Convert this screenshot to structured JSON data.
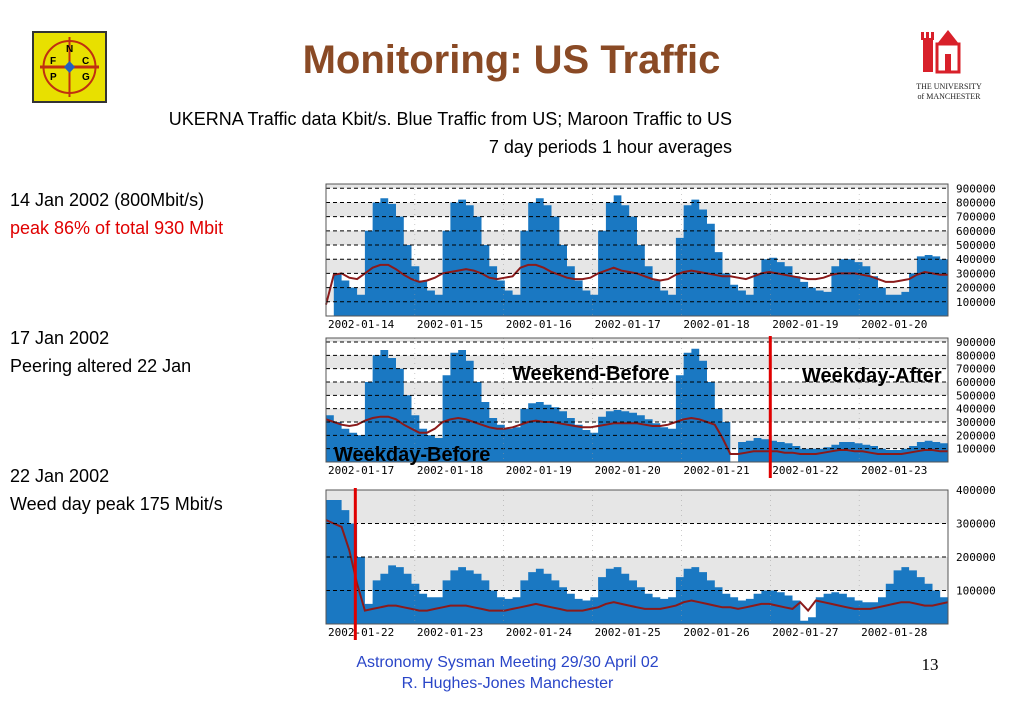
{
  "title": "Monitoring: US Traffic",
  "subtitle_line1": "UKERNA Traffic data Kbit/s. Blue Traffic from US;  Maroon Traffic to US",
  "subtitle_line2": "7 day periods 1 hour averages",
  "notes": [
    {
      "line1": "14 Jan 2002 (800Mbit/s)",
      "line2": "peak  86% of total 930 Mbit"
    },
    {
      "line1": "17 Jan 2002",
      "line2": "Peering altered 22 Jan"
    },
    {
      "line1": "22 Jan 2002",
      "line2": "Weed day peak 175 Mbit/s"
    }
  ],
  "footer": {
    "line1": "Astronomy Sysman Meeting  29/30 April 02",
    "line2": "R. Hughes-Jones  Manchester",
    "page_number": "13"
  },
  "logos": {
    "left_letters": [
      "N",
      "F",
      "C",
      "P",
      "G"
    ],
    "right_line1": "THE UNIVERSITY",
    "right_line2": "of MANCHESTER"
  },
  "colors": {
    "title": "#8a4a25",
    "inbound_blue": "#1a78c2",
    "outbound_maroon": "#8b1a1a",
    "marker_red": "#e00000",
    "note_red": "#e00000",
    "footer_blue": "#2a46c8"
  },
  "chart_data": [
    {
      "type": "area",
      "x_tick_labels": [
        "2002-01-14",
        "2002-01-15",
        "2002-01-16",
        "2002-01-17",
        "2002-01-18",
        "2002-01-19",
        "2002-01-20"
      ],
      "y_tick_labels": [
        "900000",
        "800000",
        "700000",
        "600000",
        "500000",
        "400000",
        "300000",
        "200000",
        "100000"
      ],
      "ylim": [
        0,
        930000
      ],
      "grid": true,
      "days": 7,
      "series": [
        {
          "color": "#1a78c2",
          "values": [
            0,
            300000,
            250000,
            200000,
            150000,
            600000,
            800000,
            830000,
            790000,
            700000,
            500000,
            350000,
            250000,
            180000,
            150000,
            600000,
            800000,
            820000,
            780000,
            700000,
            500000,
            350000,
            250000,
            180000,
            150000,
            600000,
            800000,
            830000,
            780000,
            700000,
            500000,
            350000,
            250000,
            180000,
            150000,
            600000,
            800000,
            850000,
            780000,
            700000,
            500000,
            350000,
            250000,
            180000,
            150000,
            550000,
            780000,
            820000,
            750000,
            650000,
            450000,
            300000,
            220000,
            180000,
            150000,
            300000,
            400000,
            410000,
            380000,
            350000,
            280000,
            240000,
            200000,
            180000,
            170000,
            350000,
            400000,
            400000,
            380000,
            350000,
            280000,
            200000,
            150000,
            150000,
            170000,
            300000,
            420000,
            430000,
            420000,
            400000,
            380000
          ]
        },
        {
          "color": "#8b1a1a",
          "values": [
            80000,
            290000,
            300000,
            270000,
            260000,
            300000,
            340000,
            360000,
            360000,
            330000,
            290000,
            260000,
            240000,
            250000,
            270000,
            300000,
            310000,
            320000,
            330000,
            320000,
            300000,
            270000,
            260000,
            270000,
            280000,
            340000,
            360000,
            360000,
            340000,
            310000,
            290000,
            270000,
            260000,
            260000,
            270000,
            300000,
            320000,
            340000,
            320000,
            310000,
            300000,
            280000,
            260000,
            250000,
            260000,
            290000,
            310000,
            320000,
            310000,
            300000,
            290000,
            280000,
            280000,
            270000,
            260000,
            280000,
            300000,
            310000,
            300000,
            290000,
            280000,
            270000,
            260000,
            260000,
            270000,
            290000,
            300000,
            300000,
            300000,
            290000,
            280000,
            260000,
            240000,
            240000,
            250000,
            260000,
            290000,
            310000,
            300000,
            290000,
            290000
          ]
        }
      ]
    },
    {
      "type": "area",
      "x_tick_labels": [
        "2002-01-17",
        "2002-01-18",
        "2002-01-19",
        "2002-01-20",
        "2002-01-21",
        "2002-01-22",
        "2002-01-23"
      ],
      "y_tick_labels": [
        "900000",
        "800000",
        "700000",
        "600000",
        "500000",
        "400000",
        "300000",
        "200000",
        "100000"
      ],
      "ylim": [
        0,
        930000
      ],
      "grid": true,
      "days": 7,
      "marker_day": 5.0,
      "series": [
        {
          "color": "#1a78c2",
          "values": [
            350000,
            300000,
            250000,
            220000,
            200000,
            600000,
            800000,
            840000,
            780000,
            700000,
            500000,
            350000,
            250000,
            200000,
            180000,
            650000,
            820000,
            840000,
            760000,
            600000,
            450000,
            330000,
            280000,
            250000,
            260000,
            400000,
            440000,
            450000,
            430000,
            410000,
            380000,
            330000,
            280000,
            240000,
            220000,
            340000,
            380000,
            390000,
            380000,
            370000,
            350000,
            320000,
            290000,
            260000,
            250000,
            650000,
            820000,
            850000,
            760000,
            600000,
            400000,
            300000,
            0,
            150000,
            160000,
            180000,
            170000,
            160000,
            150000,
            140000,
            120000,
            100000,
            100000,
            100000,
            110000,
            130000,
            150000,
            150000,
            140000,
            130000,
            120000,
            100000,
            90000,
            90000,
            100000,
            120000,
            150000,
            160000,
            150000,
            140000,
            140000
          ]
        },
        {
          "color": "#8b1a1a",
          "values": [
            320000,
            300000,
            280000,
            270000,
            280000,
            310000,
            330000,
            340000,
            340000,
            320000,
            280000,
            250000,
            220000,
            220000,
            250000,
            300000,
            320000,
            330000,
            320000,
            300000,
            280000,
            260000,
            250000,
            250000,
            260000,
            280000,
            300000,
            310000,
            300000,
            300000,
            290000,
            280000,
            270000,
            260000,
            260000,
            270000,
            280000,
            290000,
            290000,
            290000,
            290000,
            280000,
            270000,
            270000,
            280000,
            300000,
            320000,
            330000,
            320000,
            300000,
            280000,
            180000,
            60000,
            60000,
            70000,
            80000,
            80000,
            80000,
            80000,
            70000,
            70000,
            60000,
            60000,
            60000,
            70000,
            80000,
            90000,
            90000,
            80000,
            80000,
            70000,
            60000,
            60000,
            60000,
            60000,
            70000,
            80000,
            90000,
            90000,
            80000,
            80000
          ]
        }
      ]
    },
    {
      "type": "area",
      "x_tick_labels": [
        "2002-01-22",
        "2002-01-23",
        "2002-01-24",
        "2002-01-25",
        "2002-01-26",
        "2002-01-27",
        "2002-01-28"
      ],
      "y_tick_labels": [
        "400000",
        "300000",
        "200000",
        "100000"
      ],
      "ylim": [
        0,
        400000
      ],
      "grid": true,
      "days": 7,
      "marker_day": 0.33,
      "series": [
        {
          "color": "#1a78c2",
          "values": [
            370000,
            370000,
            340000,
            300000,
            200000,
            60000,
            130000,
            150000,
            175000,
            170000,
            150000,
            120000,
            90000,
            80000,
            80000,
            130000,
            160000,
            170000,
            160000,
            150000,
            130000,
            100000,
            80000,
            75000,
            80000,
            130000,
            155000,
            165000,
            150000,
            130000,
            110000,
            90000,
            75000,
            70000,
            80000,
            140000,
            165000,
            170000,
            150000,
            130000,
            110000,
            90000,
            80000,
            75000,
            80000,
            140000,
            165000,
            170000,
            155000,
            130000,
            110000,
            90000,
            80000,
            70000,
            75000,
            90000,
            100000,
            100000,
            95000,
            85000,
            70000,
            10000,
            20000,
            80000,
            90000,
            95000,
            90000,
            80000,
            70000,
            65000,
            65000,
            80000,
            120000,
            160000,
            170000,
            160000,
            140000,
            120000,
            100000,
            80000,
            80000
          ]
        },
        {
          "color": "#8b1a1a",
          "values": [
            310000,
            300000,
            290000,
            220000,
            120000,
            40000,
            45000,
            50000,
            55000,
            55000,
            50000,
            45000,
            40000,
            40000,
            45000,
            50000,
            55000,
            55000,
            55000,
            50000,
            45000,
            40000,
            40000,
            40000,
            45000,
            50000,
            55000,
            60000,
            55000,
            50000,
            45000,
            40000,
            40000,
            40000,
            45000,
            50000,
            60000,
            65000,
            60000,
            55000,
            50000,
            45000,
            45000,
            45000,
            50000,
            55000,
            65000,
            70000,
            65000,
            60000,
            55000,
            50000,
            50000,
            45000,
            50000,
            55000,
            60000,
            60000,
            55000,
            50000,
            45000,
            65000,
            40000,
            70000,
            65000,
            60000,
            55000,
            50000,
            45000,
            45000,
            45000,
            50000,
            55000,
            60000,
            65000,
            65000,
            60000,
            55000,
            55000,
            60000,
            65000
          ]
        }
      ],
      "annotations": []
    }
  ],
  "chart_annotations": [
    "Weekend-Before",
    "Weekday-After",
    "Weekday-Before"
  ]
}
